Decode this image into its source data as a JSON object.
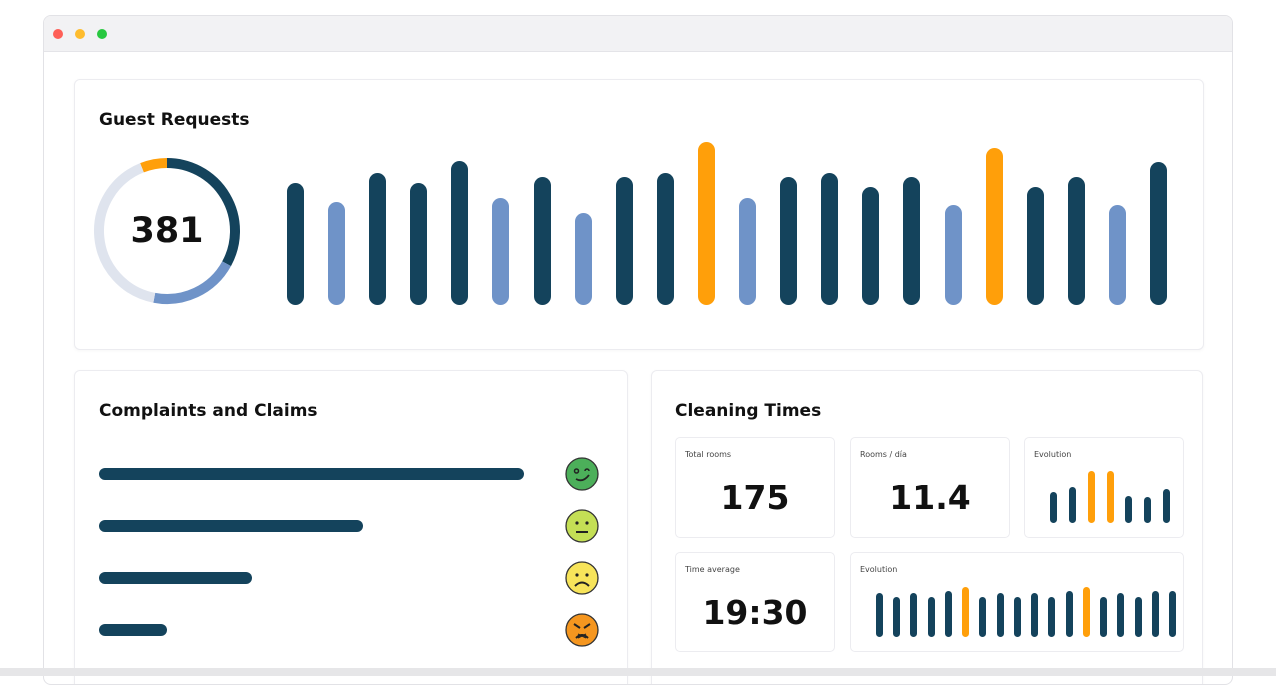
{
  "colors": {
    "dark": "#14435c",
    "light": "#6f93c8",
    "orange": "#ff9f0a",
    "pale": "#dfe4ee"
  },
  "guest_requests": {
    "title": "Guest Requests",
    "total": "381",
    "donut": [
      {
        "color": "orange",
        "fraction": 0.06
      },
      {
        "color": "dark",
        "fraction": 0.33
      },
      {
        "color": "light",
        "fraction": 0.2
      },
      {
        "color": "pale",
        "fraction": 0.41
      }
    ],
    "bars": [
      {
        "v": 111,
        "c": "dark"
      },
      {
        "v": 94,
        "c": "light"
      },
      {
        "v": 120,
        "c": "dark"
      },
      {
        "v": 111,
        "c": "dark"
      },
      {
        "v": 131,
        "c": "dark"
      },
      {
        "v": 97,
        "c": "light"
      },
      {
        "v": 116,
        "c": "dark"
      },
      {
        "v": 84,
        "c": "light"
      },
      {
        "v": 116,
        "c": "dark"
      },
      {
        "v": 120,
        "c": "dark"
      },
      {
        "v": 148,
        "c": "orange"
      },
      {
        "v": 97,
        "c": "light"
      },
      {
        "v": 116,
        "c": "dark"
      },
      {
        "v": 120,
        "c": "dark"
      },
      {
        "v": 107,
        "c": "dark"
      },
      {
        "v": 116,
        "c": "dark"
      },
      {
        "v": 91,
        "c": "light"
      },
      {
        "v": 143,
        "c": "orange"
      },
      {
        "v": 107,
        "c": "dark"
      },
      {
        "v": 116,
        "c": "dark"
      },
      {
        "v": 91,
        "c": "light"
      },
      {
        "v": 130,
        "c": "dark"
      }
    ]
  },
  "complaints": {
    "title": "Complaints and Claims",
    "rows": [
      {
        "fraction": 1.0,
        "icon": "happy-face-icon",
        "color": "#4caf5a"
      },
      {
        "fraction": 0.62,
        "icon": "neutral-face-icon",
        "color": "#c4df55"
      },
      {
        "fraction": 0.36,
        "icon": "sad-face-icon",
        "color": "#f7e45a"
      },
      {
        "fraction": 0.16,
        "icon": "angry-face-icon",
        "color": "#f5961f"
      }
    ]
  },
  "cleaning": {
    "title": "Cleaning Times",
    "total_rooms": {
      "label": "Total rooms",
      "value": "175"
    },
    "rooms_day": {
      "label": "Rooms / día",
      "value": "11.4"
    },
    "time_average": {
      "label": "Time average",
      "value": "19:30"
    },
    "evolution_small": {
      "label": "Evolution",
      "bars": [
        {
          "v": 31,
          "c": "dark"
        },
        {
          "v": 36,
          "c": "dark"
        },
        {
          "v": 52,
          "c": "orange"
        },
        {
          "v": 52,
          "c": "orange"
        },
        {
          "v": 27,
          "c": "dark"
        },
        {
          "v": 26,
          "c": "dark"
        },
        {
          "v": 34,
          "c": "dark"
        }
      ]
    },
    "evolution_wide": {
      "label": "Evolution",
      "bars": [
        {
          "v": 44,
          "c": "dark"
        },
        {
          "v": 40,
          "c": "dark"
        },
        {
          "v": 44,
          "c": "dark"
        },
        {
          "v": 40,
          "c": "dark"
        },
        {
          "v": 46,
          "c": "dark"
        },
        {
          "v": 50,
          "c": "orange"
        },
        {
          "v": 40,
          "c": "dark"
        },
        {
          "v": 44,
          "c": "dark"
        },
        {
          "v": 40,
          "c": "dark"
        },
        {
          "v": 44,
          "c": "dark"
        },
        {
          "v": 40,
          "c": "dark"
        },
        {
          "v": 46,
          "c": "dark"
        },
        {
          "v": 50,
          "c": "orange"
        },
        {
          "v": 40,
          "c": "dark"
        },
        {
          "v": 44,
          "c": "dark"
        },
        {
          "v": 40,
          "c": "dark"
        },
        {
          "v": 46,
          "c": "dark"
        },
        {
          "v": 46,
          "c": "dark"
        }
      ]
    }
  }
}
